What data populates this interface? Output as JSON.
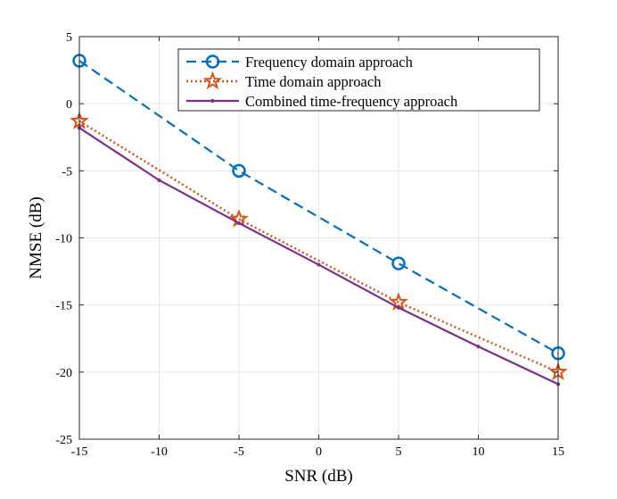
{
  "chart_data": {
    "type": "line",
    "title": "",
    "xlabel": "SNR (dB)",
    "ylabel": "NMSE (dB)",
    "xlim": [
      -15,
      15
    ],
    "ylim": [
      -25,
      5
    ],
    "xticks": [
      -15,
      -10,
      -5,
      0,
      5,
      10,
      15
    ],
    "yticks": [
      5,
      0,
      -5,
      -10,
      -15,
      -20,
      -25
    ],
    "grid": true,
    "legend_position": "top-right",
    "series": [
      {
        "name": "Frequency domain approach",
        "color": "#0072BD",
        "line_style": "dashed",
        "marker": "circle",
        "x": [
          -15,
          -5,
          5,
          15
        ],
        "y": [
          3.2,
          -5.0,
          -11.9,
          -18.6
        ]
      },
      {
        "name": "Time domain approach",
        "color": "#D95319",
        "line_style": "dotted",
        "marker": "star",
        "x": [
          -15,
          -5,
          5,
          15
        ],
        "y": [
          -1.3,
          -8.6,
          -14.8,
          -20.0
        ]
      },
      {
        "name": "Combined time-frequency approach",
        "color": "#7E2F8E",
        "line_style": "solid",
        "marker": "dot",
        "x": [
          -15,
          -10,
          -5,
          0,
          5,
          10,
          15
        ],
        "y": [
          -1.8,
          -5.7,
          -8.9,
          -12.0,
          -15.2,
          -18.1,
          -20.9
        ]
      }
    ]
  }
}
